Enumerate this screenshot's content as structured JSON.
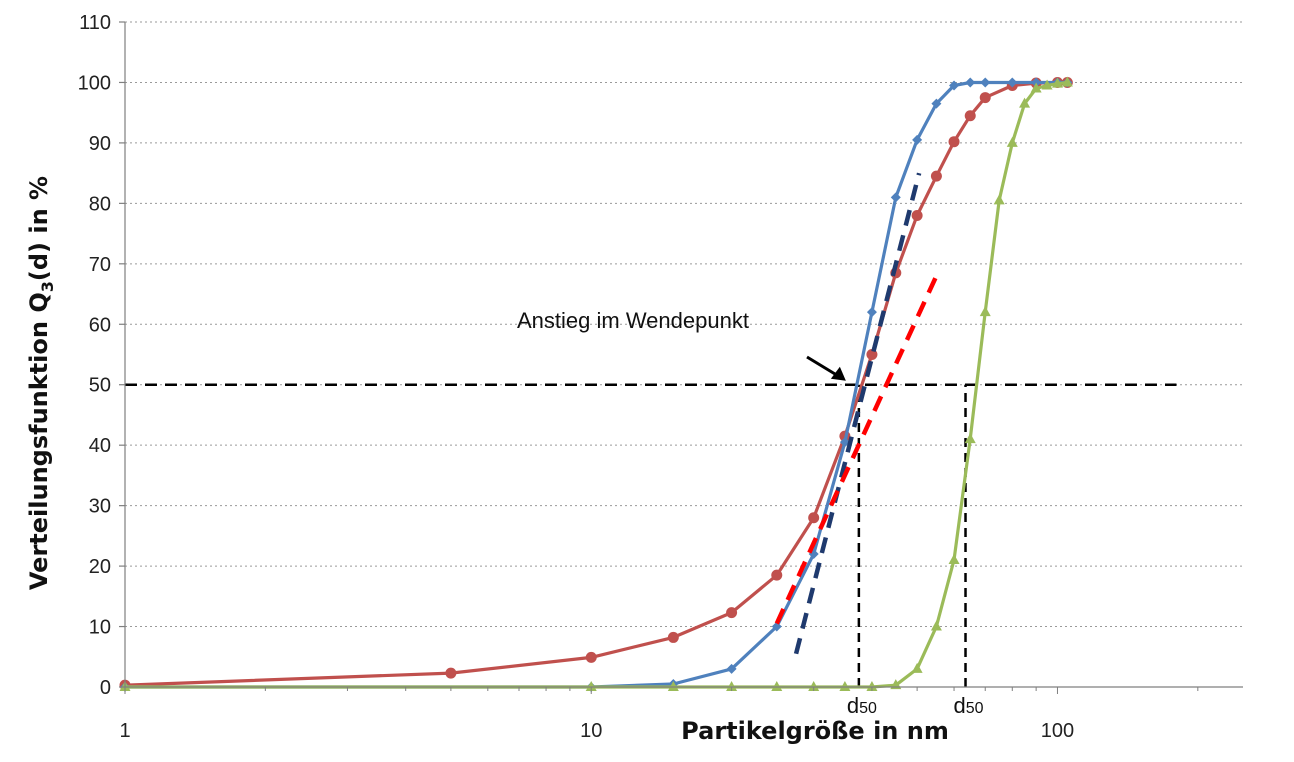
{
  "chart_data": {
    "type": "line",
    "xscale": "log",
    "xlim": [
      1,
      250
    ],
    "ylim": [
      0,
      110
    ],
    "xticks": [
      1,
      10,
      100
    ],
    "xtick_labels": [
      "1",
      "10",
      "100"
    ],
    "yticks": [
      0,
      10,
      20,
      30,
      40,
      50,
      60,
      70,
      80,
      90,
      100,
      110
    ],
    "ytick_labels": [
      "0",
      "10",
      "20",
      "30",
      "40",
      "50",
      "60",
      "70",
      "80",
      "90",
      "100",
      "110"
    ],
    "grid": "horizontal-dotted",
    "legend": "none",
    "xlabel": "Partikelgröße in nm",
    "ylabel_parts": {
      "pre": "Verteilungsfunktion Q",
      "sub": "3",
      "post": "(d) in %"
    },
    "series": [
      {
        "color": "#c0504d",
        "marker": "circle",
        "x": [
          1,
          5,
          10,
          15,
          20,
          25,
          30,
          35,
          40,
          45,
          50,
          55,
          60,
          65,
          70,
          80,
          90,
          100,
          105
        ],
        "y": [
          0.3,
          2.3,
          4.9,
          8.2,
          12.3,
          18.5,
          28.0,
          41.5,
          55.0,
          68.5,
          78.0,
          84.5,
          90.2,
          94.5,
          97.5,
          99.5,
          99.9,
          100,
          100
        ]
      },
      {
        "color": "#4f81bd",
        "marker": "diamond",
        "x": [
          1,
          10,
          15,
          20,
          25,
          30,
          35,
          40,
          45,
          50,
          55,
          60,
          65,
          70,
          80,
          90,
          100,
          105
        ],
        "y": [
          0,
          0,
          0.5,
          3.0,
          10.0,
          22.0,
          40.5,
          62.0,
          81.0,
          90.5,
          96.5,
          99.5,
          100,
          100,
          100,
          100,
          100,
          100
        ]
      },
      {
        "color": "#9bbb59",
        "marker": "triangle",
        "x": [
          1,
          10,
          15,
          20,
          25,
          30,
          35,
          40,
          45,
          50,
          55,
          60,
          65,
          70,
          75,
          80,
          85,
          90,
          95,
          100,
          105
        ],
        "y": [
          0,
          0,
          0,
          0,
          0,
          0,
          0,
          0,
          0.3,
          3.0,
          10.0,
          21.0,
          41.0,
          62.0,
          80.5,
          90.0,
          96.5,
          99.0,
          99.5,
          99.8,
          100
        ]
      }
    ],
    "tangents": [
      {
        "color": "#1f3a6e",
        "x": [
          27.5,
          50.5
        ],
        "y": [
          5.5,
          85
        ]
      },
      {
        "color": "#ff0000",
        "x": [
          25.0,
          55.0
        ],
        "y": [
          10.5,
          68
        ]
      }
    ],
    "reference_lines": [
      {
        "type": "horizontal",
        "y": 50,
        "x_from": 1,
        "x_to": 180
      },
      {
        "type": "vertical",
        "x": 37.5,
        "y_from": 0,
        "y_to": 50
      },
      {
        "type": "vertical",
        "x": 63.5,
        "y_from": 0,
        "y_to": 50
      }
    ],
    "annotations": [
      {
        "text": "Anstieg im Wendepunkt",
        "arrow_to": [
          37.5,
          50
        ]
      },
      {
        "text": "d50",
        "x": 37.5
      },
      {
        "text": "d50",
        "x": 63.5
      }
    ]
  }
}
